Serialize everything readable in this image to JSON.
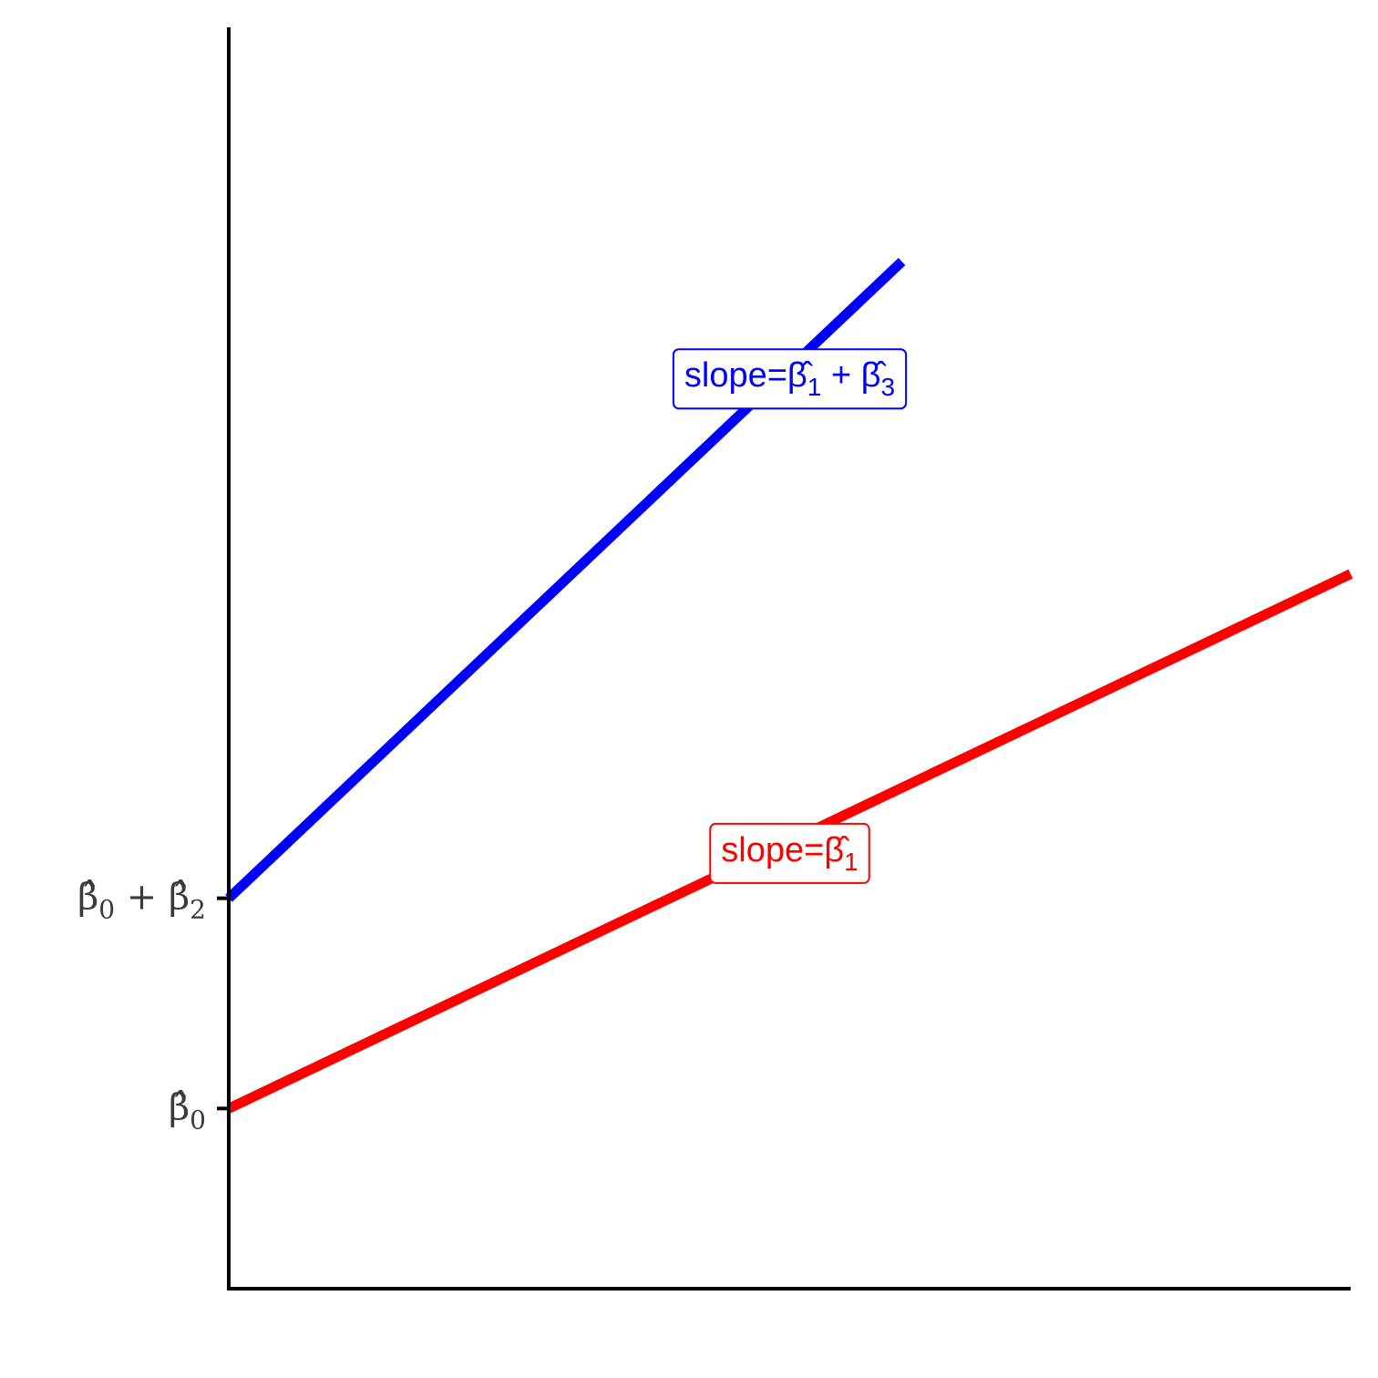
{
  "chart_data": {
    "type": "line",
    "title": "",
    "xlabel": "",
    "ylabel": "",
    "xlim": [
      0,
      12
    ],
    "ylim": [
      -3,
      18
    ],
    "grid": false,
    "legend": "none",
    "y_ticks": [
      {
        "value": 0,
        "label_base": "β̂",
        "label_sub": "0",
        "label_plus": "",
        "label_base2": "",
        "label_sub2": ""
      },
      {
        "value": 3.5,
        "label_base": "β̂",
        "label_sub": "0",
        "label_plus": " + ",
        "label_base2": "β̂",
        "label_sub2": "2"
      }
    ],
    "series": [
      {
        "color": "#ff0000",
        "x": [
          0,
          12
        ],
        "y": [
          0,
          8.9
        ],
        "label": {
          "x": 6,
          "y": 4.3,
          "text": "slope=",
          "base": "β̂",
          "sub": "1",
          "plus": "",
          "base2": "",
          "sub2": ""
        }
      },
      {
        "color": "#0000ff",
        "x": [
          0,
          7.2
        ],
        "y": [
          3.5,
          14.1
        ],
        "label": {
          "x": 6,
          "y": 12.2,
          "text": "slope=",
          "base": "β̂",
          "sub": "1",
          "plus": " + ",
          "base2": "β̂",
          "sub2": "3"
        }
      }
    ]
  }
}
